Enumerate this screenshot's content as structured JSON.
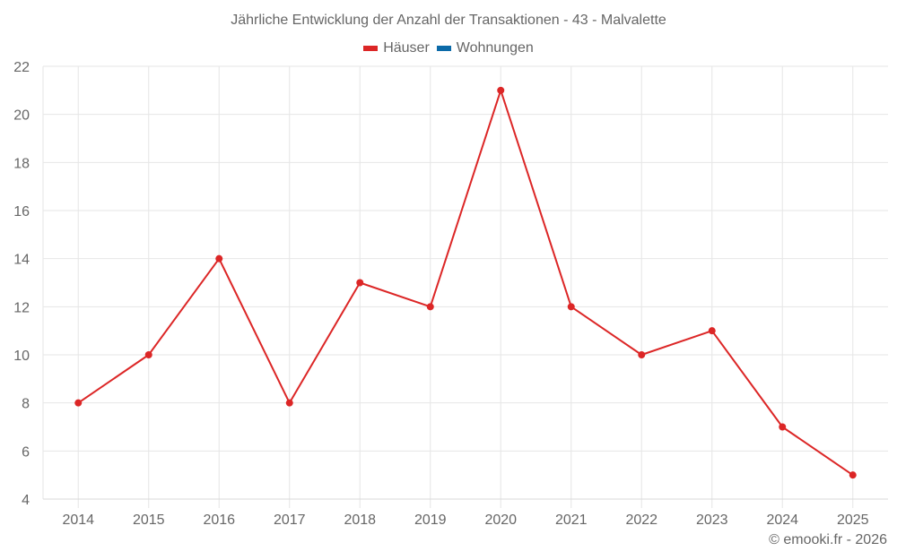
{
  "title": "Jährliche Entwicklung der Anzahl der Transaktionen - 43 - Malvalette",
  "legend": [
    {
      "label": "Häuser",
      "color": "#dc2626"
    },
    {
      "label": "Wohnungen",
      "color": "#0b6aa8"
    }
  ],
  "credits": "© emooki.fr - 2026",
  "chart_data": {
    "type": "line",
    "title": "Jährliche Entwicklung der Anzahl der Transaktionen - 43 - Malvalette",
    "xlabel": "",
    "ylabel": "",
    "categories": [
      "2014",
      "2015",
      "2016",
      "2017",
      "2018",
      "2019",
      "2020",
      "2021",
      "2022",
      "2023",
      "2024",
      "2025"
    ],
    "series": [
      {
        "name": "Häuser",
        "color": "#dc2626",
        "values": [
          8,
          10,
          14,
          8,
          13,
          12,
          21,
          12,
          10,
          11,
          7,
          5
        ]
      },
      {
        "name": "Wohnungen",
        "color": "#0b6aa8",
        "values": []
      }
    ],
    "ylim": [
      4,
      22
    ],
    "yticks": [
      4,
      6,
      8,
      10,
      12,
      14,
      16,
      18,
      20,
      22
    ],
    "grid": true,
    "legend_position": "top"
  }
}
